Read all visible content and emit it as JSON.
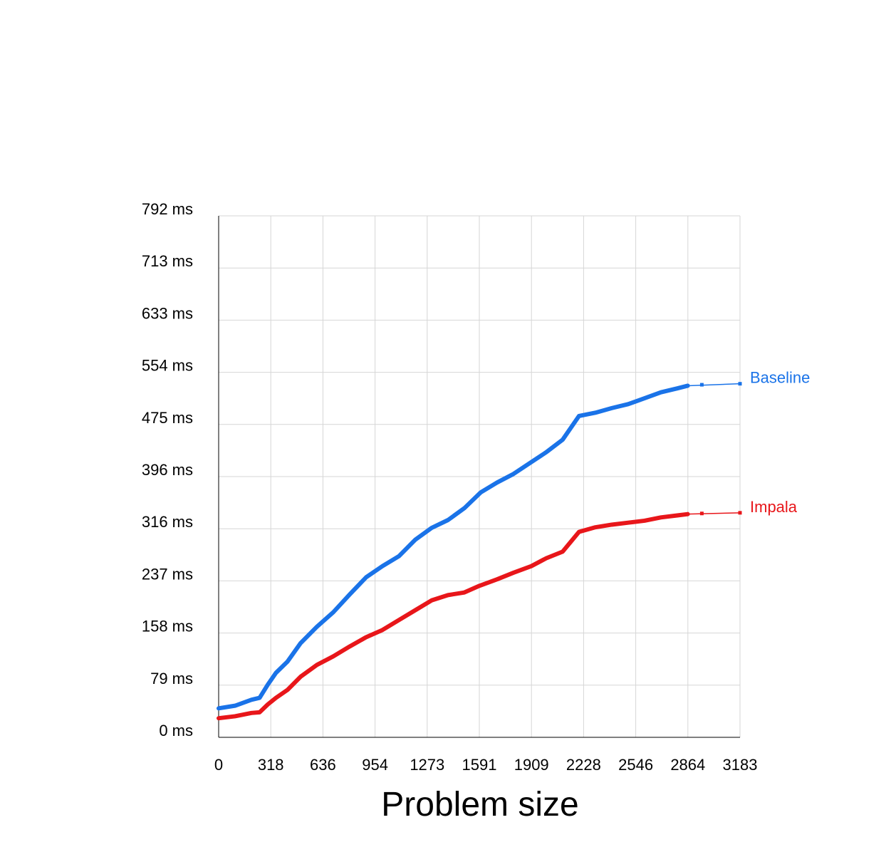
{
  "chart_data": {
    "type": "line",
    "xlabel": "Problem size",
    "ylabel": "",
    "xlim": [
      0,
      3183
    ],
    "ylim": [
      0,
      792
    ],
    "x_ticks": [
      "0",
      "318",
      "636",
      "954",
      "1273",
      "1591",
      "1909",
      "2228",
      "2546",
      "2864",
      "3183"
    ],
    "y_ticks": [
      "0 ms",
      "79 ms",
      "158 ms",
      "237 ms",
      "316 ms",
      "396 ms",
      "475 ms",
      "554 ms",
      "633 ms",
      "713 ms",
      "792 ms"
    ],
    "grid": true,
    "series": [
      {
        "name": "Baseline",
        "color": "#1a73e8",
        "points": [
          [
            0,
            44
          ],
          [
            100,
            48
          ],
          [
            200,
            57
          ],
          [
            250,
            60
          ],
          [
            300,
            80
          ],
          [
            350,
            98
          ],
          [
            420,
            115
          ],
          [
            500,
            143
          ],
          [
            600,
            168
          ],
          [
            700,
            190
          ],
          [
            800,
            217
          ],
          [
            900,
            243
          ],
          [
            1000,
            260
          ],
          [
            1100,
            275
          ],
          [
            1200,
            300
          ],
          [
            1300,
            318
          ],
          [
            1400,
            330
          ],
          [
            1500,
            348
          ],
          [
            1600,
            372
          ],
          [
            1700,
            387
          ],
          [
            1800,
            400
          ],
          [
            1909,
            418
          ],
          [
            2000,
            433
          ],
          [
            2100,
            452
          ],
          [
            2200,
            488
          ],
          [
            2300,
            493
          ],
          [
            2400,
            500
          ],
          [
            2500,
            506
          ],
          [
            2600,
            515
          ],
          [
            2700,
            524
          ],
          [
            2800,
            530
          ],
          [
            2864,
            534
          ],
          [
            3183,
            537
          ]
        ]
      },
      {
        "name": "Impala",
        "color": "#e8161a",
        "points": [
          [
            0,
            29
          ],
          [
            100,
            32
          ],
          [
            200,
            37
          ],
          [
            250,
            38
          ],
          [
            300,
            50
          ],
          [
            350,
            60
          ],
          [
            420,
            72
          ],
          [
            500,
            92
          ],
          [
            600,
            110
          ],
          [
            700,
            123
          ],
          [
            800,
            138
          ],
          [
            900,
            152
          ],
          [
            1000,
            163
          ],
          [
            1100,
            178
          ],
          [
            1200,
            193
          ],
          [
            1300,
            208
          ],
          [
            1400,
            216
          ],
          [
            1500,
            220
          ],
          [
            1591,
            230
          ],
          [
            1700,
            240
          ],
          [
            1800,
            250
          ],
          [
            1909,
            260
          ],
          [
            2000,
            272
          ],
          [
            2100,
            282
          ],
          [
            2200,
            312
          ],
          [
            2300,
            319
          ],
          [
            2400,
            323
          ],
          [
            2500,
            326
          ],
          [
            2600,
            329
          ],
          [
            2700,
            334
          ],
          [
            2800,
            337
          ],
          [
            2864,
            339
          ],
          [
            3183,
            341
          ]
        ]
      }
    ]
  }
}
